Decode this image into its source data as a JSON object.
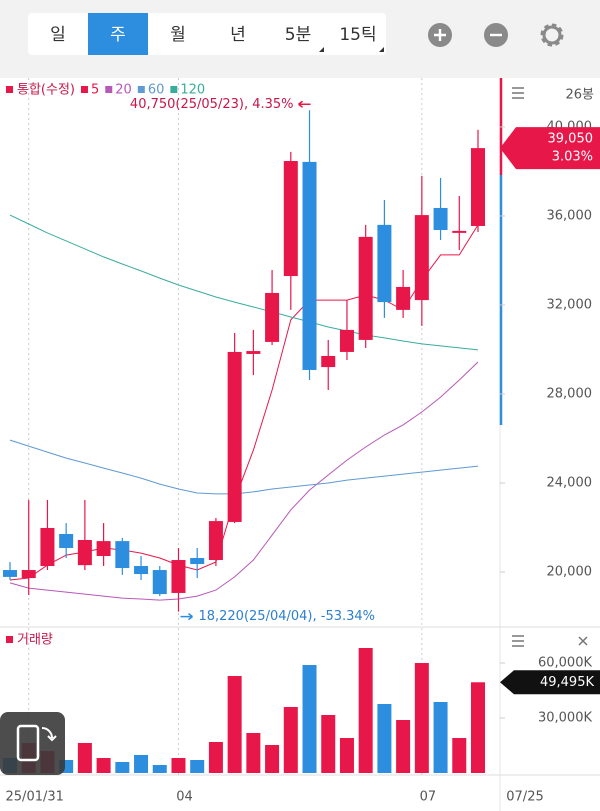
{
  "toolbar": {
    "tabs": [
      "일",
      "주",
      "월",
      "년",
      "5분",
      "15틱"
    ],
    "selected": 1
  },
  "chart_data": [
    {
      "type": "candlestick",
      "title": "통합(수정)",
      "bar_count": "26봉",
      "categories": [
        null,
        "25/01/31",
        null,
        null,
        null,
        null,
        null,
        null,
        null,
        "04",
        null,
        null,
        null,
        null,
        null,
        null,
        null,
        null,
        null,
        null,
        null,
        null,
        "07",
        null,
        null,
        null
      ],
      "last_date": "07/25",
      "open": [
        20090,
        19730,
        20270,
        21710,
        20310,
        20720,
        21390,
        20270,
        20090,
        19060,
        20630,
        20540,
        22250,
        29800,
        30340,
        33300,
        38430,
        29210,
        29890,
        30430,
        35600,
        31780,
        32220,
        36360,
        35280,
        35550
      ],
      "high": [
        20450,
        23240,
        23240,
        22200,
        23240,
        22200,
        21530,
        20720,
        20270,
        21080,
        21080,
        22430,
        30740,
        30880,
        33570,
        38880,
        40750,
        30430,
        32220,
        35600,
        36720,
        33570,
        37800,
        37710,
        36900,
        39870
      ],
      "low": [
        19640,
        18970,
        20090,
        20630,
        20090,
        20270,
        19870,
        19640,
        18920,
        18220,
        19730,
        20270,
        22200,
        28850,
        30200,
        31780,
        28630,
        28180,
        29530,
        30070,
        31420,
        31420,
        31060,
        34920,
        34470,
        35280
      ],
      "close": [
        19780,
        20090,
        21980,
        21080,
        21440,
        21390,
        20180,
        19910,
        19010,
        20540,
        20360,
        22290,
        29890,
        29930,
        32540,
        38470,
        29080,
        29710,
        30880,
        35060,
        32130,
        32810,
        36040,
        35370,
        35330,
        39050
      ],
      "up_color": "#e8174a",
      "down_color": "#2d8ee0",
      "series": [
        {
          "name": "5",
          "color": "#e8174a",
          "values": [
            19640,
            19730,
            20310,
            20760,
            20900,
            21080,
            20990,
            20850,
            20630,
            20310,
            20090,
            20450,
            23240,
            25480,
            28180,
            31330,
            32220,
            32220,
            32220,
            32450,
            32220,
            31780,
            33120,
            34250,
            34250,
            35600
          ]
        },
        {
          "name": "20",
          "color": "#b858b8",
          "values": [
            19510,
            19280,
            19190,
            19100,
            19010,
            18920,
            18830,
            18790,
            18740,
            18790,
            18920,
            19190,
            19780,
            20540,
            21660,
            22790,
            23680,
            24360,
            25030,
            25620,
            26160,
            26610,
            27190,
            27860,
            28630,
            29440
          ]
        },
        {
          "name": "60",
          "color": "#5f9ad3",
          "values": [
            25930,
            25660,
            25390,
            25120,
            24900,
            24670,
            24450,
            24220,
            23950,
            23730,
            23550,
            23510,
            23510,
            23600,
            23730,
            23820,
            23910,
            24000,
            24130,
            24220,
            24310,
            24400,
            24490,
            24580,
            24670,
            24760
          ]
        },
        {
          "name": "120",
          "color": "#39ad9c",
          "values": [
            36040,
            35640,
            35240,
            34880,
            34520,
            34160,
            33840,
            33530,
            33210,
            32900,
            32630,
            32360,
            32130,
            31910,
            31690,
            31460,
            31240,
            31010,
            30830,
            30650,
            30520,
            30380,
            30250,
            30160,
            30070,
            29980
          ]
        }
      ],
      "ylim": [
        17620,
        42200
      ],
      "yticks": [
        {
          "value": 20000,
          "label": "20,000"
        },
        {
          "value": 24000,
          "label": "24,000"
        },
        {
          "value": 28000,
          "label": "28,000"
        },
        {
          "value": 32000,
          "label": "32,000"
        },
        {
          "value": 36000,
          "label": "36,000"
        },
        {
          "value": 40000,
          "label": "40,000"
        }
      ],
      "annotations": [
        {
          "kind": "high",
          "value": 40750,
          "text": "40,750(25/05/23), 4.35%"
        },
        {
          "kind": "low",
          "value": 18220,
          "text": "18,220(25/04/04), -53.34%"
        }
      ],
      "current_price": {
        "value": 39050,
        "label": "39,050",
        "change": "3.03%"
      }
    },
    {
      "type": "bar",
      "title": "거래량",
      "values": [
        8180,
        16370,
        12000,
        7090,
        16370,
        8180,
        6000,
        9820,
        4360,
        8180,
        7090,
        16910,
        52910,
        21820,
        15270,
        36000,
        58910,
        31640,
        19090,
        68190,
        37640,
        28910,
        60000,
        38730,
        19090,
        49495
      ],
      "ylim": [
        0,
        67100
      ],
      "yticks": [
        {
          "value": 30000,
          "label": "30,000K"
        },
        {
          "value": 60000,
          "label": "60,000K"
        }
      ],
      "current_value": {
        "value": 49495,
        "label": "49,495K"
      }
    }
  ]
}
